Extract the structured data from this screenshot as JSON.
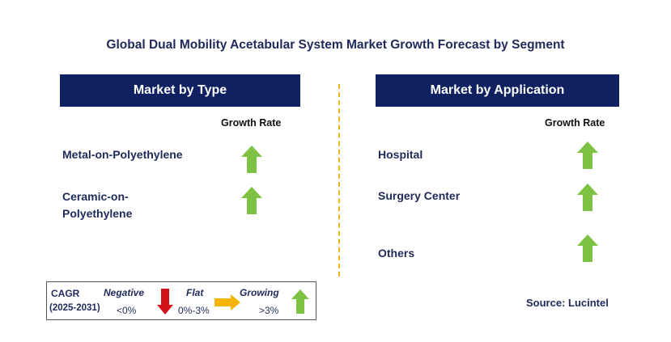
{
  "title": "Global Dual Mobility Acetabular System Market Growth Forecast by Segment",
  "left_panel": {
    "header": "Market by Type",
    "growth_label": "Growth Rate",
    "items": [
      {
        "label": "Metal-on-Polyethylene",
        "trend": "growing",
        "icon": "green-up-arrow-icon"
      },
      {
        "label_line1": "Ceramic-on-",
        "label_line2": "Polyethylene",
        "trend": "growing",
        "icon": "green-up-arrow-icon"
      }
    ]
  },
  "right_panel": {
    "header": "Market by Application",
    "growth_label": "Growth Rate",
    "items": [
      {
        "label": "Hospital",
        "trend": "growing",
        "icon": "green-up-arrow-icon"
      },
      {
        "label": "Surgery Center",
        "trend": "growing",
        "icon": "green-up-arrow-icon"
      },
      {
        "label": "Others",
        "trend": "growing",
        "icon": "green-up-arrow-icon"
      }
    ]
  },
  "legend": {
    "cagr": "CAGR",
    "period": "(2025-2031)",
    "negative_label": "Negative",
    "negative_range": "<0%",
    "flat_label": "Flat",
    "flat_range": "0%-3%",
    "growing_label": "Growing",
    "growing_range": ">3%"
  },
  "source": "Source: Lucintel",
  "colors": {
    "header_bg": "#0f2160",
    "title_text": "#1f2a5a",
    "divider": "#f0b323",
    "growing": "#7dc242",
    "negative": "#d0121b",
    "flat": "#f5b400"
  }
}
